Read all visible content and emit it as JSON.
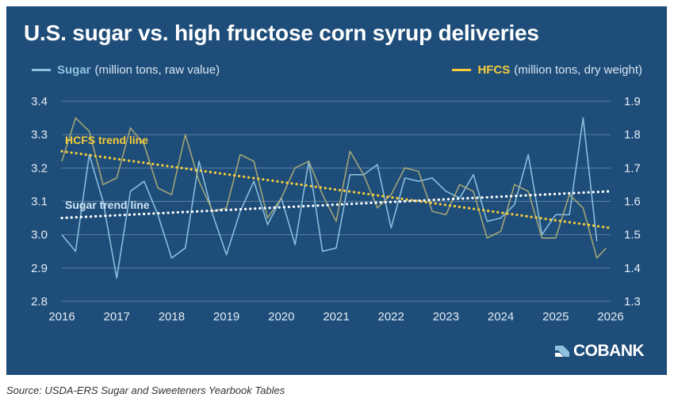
{
  "title": "U.S. sugar vs. high fructose corn syrup deliveries",
  "legend": {
    "sugar_name": "Sugar",
    "sugar_unit": "(million tons, raw value)",
    "hfcs_name": "HFCS",
    "hfcs_unit": "(million tons, dry weight)"
  },
  "logo": {
    "text": "COBANK",
    "icon": "cobank-logo-icon"
  },
  "source": "Source: USDA-ERS Sugar and Sweeteners Yearbook Tables",
  "colors": {
    "background": "#1e4d79",
    "sugar": "#8fc2e0",
    "hfcs": "#a8aa77",
    "sugar_trend": "#ffffff",
    "hfcs_trend": "#f5cc3a",
    "grid": "#5b7fa3"
  },
  "chart_data": {
    "type": "line",
    "title": "U.S. sugar vs. high fructose corn syrup deliveries",
    "x_ticks": [
      "2016",
      "2017",
      "2018",
      "2019",
      "2020",
      "2021",
      "2022",
      "2023",
      "2024",
      "2025",
      "2026"
    ],
    "xlim": [
      2016,
      2026
    ],
    "y_left": {
      "ylim": [
        2.8,
        3.4
      ],
      "ticks": [
        "2.8",
        "2.9",
        "3.0",
        "3.1",
        "3.2",
        "3.3",
        "3.4"
      ]
    },
    "y_right": {
      "ylim": [
        1.3,
        1.9
      ],
      "ticks": [
        "1.3",
        "1.4",
        "1.5",
        "1.6",
        "1.7",
        "1.8",
        "1.9"
      ]
    },
    "grid": "horizontal",
    "legend_position": "top",
    "series": [
      {
        "name": "Sugar",
        "unit": "(million tons, raw value)",
        "axis": "left",
        "x": [
          2016,
          2016.25,
          2016.5,
          2016.75,
          2017,
          2017.25,
          2017.5,
          2017.75,
          2018,
          2018.25,
          2018.5,
          2018.75,
          2019,
          2019.25,
          2019.5,
          2019.75,
          2020,
          2020.25,
          2020.5,
          2020.75,
          2021,
          2021.25,
          2021.5,
          2021.75,
          2022,
          2022.25,
          2022.5,
          2022.75,
          2023,
          2023.25,
          2023.5,
          2023.75,
          2024,
          2024.25,
          2024.5,
          2024.75,
          2025,
          2025.25,
          2025.5,
          2025.75
        ],
        "values": [
          3.0,
          2.95,
          3.24,
          3.1,
          2.87,
          3.13,
          3.16,
          3.06,
          2.93,
          2.96,
          3.22,
          3.06,
          2.94,
          3.07,
          3.16,
          3.03,
          3.11,
          2.97,
          3.22,
          2.95,
          2.96,
          3.18,
          3.18,
          3.21,
          3.02,
          3.17,
          3.16,
          3.17,
          3.13,
          3.11,
          3.18,
          3.04,
          3.05,
          3.09,
          3.24,
          3.0,
          3.06,
          3.06,
          3.35,
          2.98
        ]
      },
      {
        "name": "HFCS",
        "unit": "(million tons, dry weight)",
        "axis": "right",
        "x": [
          2016,
          2016.25,
          2016.5,
          2016.75,
          2017,
          2017.25,
          2017.5,
          2017.75,
          2018,
          2018.25,
          2018.5,
          2018.75,
          2019,
          2019.25,
          2019.5,
          2019.75,
          2020,
          2020.25,
          2020.5,
          2020.75,
          2021,
          2021.25,
          2021.5,
          2021.75,
          2022,
          2022.25,
          2022.5,
          2022.75,
          2023,
          2023.25,
          2023.5,
          2023.75,
          2024,
          2024.25,
          2024.5,
          2024.75,
          2025,
          2025.25,
          2025.5,
          2025.75,
          2025.92
        ],
        "values": [
          1.72,
          1.85,
          1.81,
          1.65,
          1.67,
          1.82,
          1.77,
          1.64,
          1.62,
          1.8,
          1.66,
          1.57,
          1.58,
          1.74,
          1.72,
          1.55,
          1.61,
          1.7,
          1.72,
          1.62,
          1.54,
          1.75,
          1.68,
          1.58,
          1.62,
          1.7,
          1.69,
          1.57,
          1.56,
          1.65,
          1.63,
          1.49,
          1.51,
          1.65,
          1.63,
          1.49,
          1.49,
          1.62,
          1.58,
          1.43,
          1.46
        ]
      }
    ],
    "trend_lines": [
      {
        "label": "HCFS trend line",
        "axis": "right",
        "x": [
          2016,
          2026
        ],
        "values": [
          1.75,
          1.52
        ]
      },
      {
        "label": "Sugar trend line",
        "axis": "left",
        "x": [
          2016,
          2026
        ],
        "values": [
          3.05,
          3.13
        ]
      }
    ]
  }
}
